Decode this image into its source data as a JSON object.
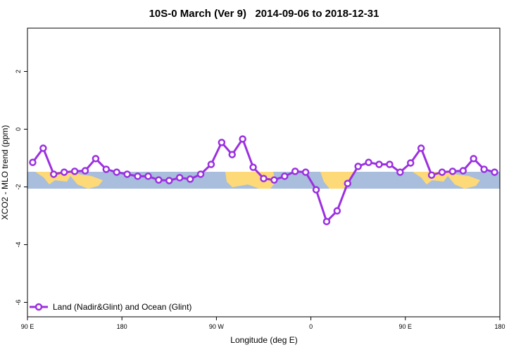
{
  "chart_data": {
    "type": "line",
    "title": "10S-0 March (Ver 9)   2014-09-06 to 2018-12-31",
    "x_label": "Longitude (deg E)",
    "y_label": "XCO2 - MLO trend (ppm)",
    "xlim": [
      90,
      540
    ],
    "ylim": [
      -6.5,
      3.5
    ],
    "xticks": [
      {
        "value": 90,
        "label": "90 E"
      },
      {
        "value": 180,
        "label": "180"
      },
      {
        "value": 270,
        "label": "90 W"
      },
      {
        "value": 360,
        "label": "0"
      },
      {
        "value": 450,
        "label": "90 E"
      },
      {
        "value": 540,
        "label": "180"
      }
    ],
    "yticks": [
      2,
      0,
      -2,
      -4,
      -6
    ],
    "legend_position": "bottom-left",
    "x": [
      95,
      105,
      115,
      125,
      135,
      145,
      155,
      165,
      175,
      185,
      195,
      205,
      215,
      225,
      235,
      245,
      255,
      265,
      275,
      285,
      295,
      305,
      315,
      325,
      335,
      345,
      355,
      365,
      375,
      385,
      395,
      405,
      415,
      425,
      435,
      445,
      455,
      465,
      475,
      485,
      495,
      505,
      515,
      525,
      535
    ],
    "series": [
      {
        "name": "Land (Nadir&Glint) and Ocean (Glint)",
        "color": "#9b30e0",
        "values": [
          -1.15,
          -0.66,
          -1.56,
          -1.49,
          -1.46,
          -1.44,
          -1.02,
          -1.39,
          -1.49,
          -1.56,
          -1.63,
          -1.63,
          -1.76,
          -1.78,
          -1.68,
          -1.73,
          -1.56,
          -1.22,
          -0.46,
          -0.88,
          -0.34,
          -1.32,
          -1.71,
          -1.76,
          -1.63,
          -1.46,
          -1.49,
          -2.1,
          -3.2,
          -2.83,
          -1.88,
          -1.29,
          -1.15,
          -1.22,
          -1.22,
          -1.49,
          -1.17,
          -0.66,
          -1.59,
          -1.49,
          -1.46,
          -1.44,
          -1.02,
          -1.39,
          -1.49
        ]
      }
    ]
  }
}
